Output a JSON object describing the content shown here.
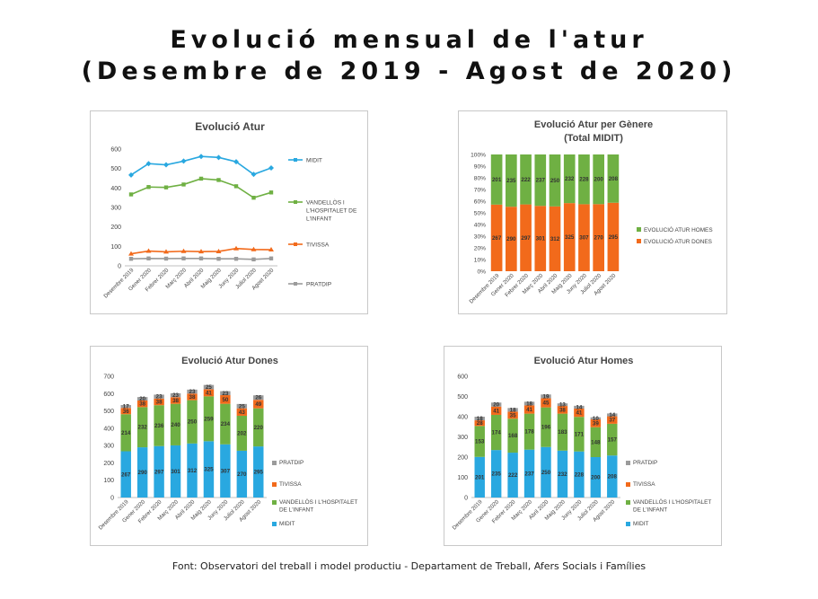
{
  "page": {
    "title_line1": "Evolució mensual de l'atur",
    "title_line2": "(Desembre de 2019 - Agost de 2020)",
    "footer": "Font: Observatori del treball i model productiu - Departament de Treball, Afers Socials i Famílies"
  },
  "colors": {
    "midit": "#29a8e0",
    "vandellos": "#6fb043",
    "tivissa": "#f26a1b",
    "pratdip": "#9b9b9b",
    "homes": "#6fb043",
    "dones": "#f26a1b",
    "grid": "#d9d9d9"
  },
  "chart_data": [
    {
      "type": "line",
      "title": "Evolució Atur",
      "categories": [
        "Desembre 2019",
        "Gener 2020",
        "Febrer 2020",
        "Març 2020",
        "Abril 2020",
        "Maig 2020",
        "Juny 2020",
        "Juliol 2020",
        "Agost 2020"
      ],
      "ylim": [
        0,
        600
      ],
      "yticks": [
        0,
        100,
        200,
        300,
        400,
        500,
        600
      ],
      "grid": false,
      "legend_position": "right",
      "series": [
        {
          "name": "MIDIT",
          "values": [
            467,
            525,
            519,
            538,
            562,
            557,
            535,
            470,
            503
          ]
        },
        {
          "name": "VANDELLÒS I L'HOSPITALET DE L'INFANT",
          "values": [
            367,
            405,
            403,
            418,
            448,
            441,
            409,
            350,
            377
          ]
        },
        {
          "name": "TIVISSA",
          "values": [
            62,
            76,
            72,
            75,
            73,
            74,
            89,
            84,
            83
          ]
        },
        {
          "name": "PRATDIP",
          "values": [
            36,
            38,
            37,
            38,
            38,
            36,
            36,
            33,
            38
          ]
        }
      ]
    },
    {
      "type": "bar",
      "stacked": "percent",
      "title": "Evolució Atur per Gènere (Total MIDIT)",
      "categories": [
        "Desembre 2019",
        "Gener 2020",
        "Febrer 2020",
        "Març 2020",
        "Abril 2020",
        "Maig 2020",
        "Juny 2020",
        "Juliol 2020",
        "Agost 2020"
      ],
      "yticks": [
        "0%",
        "10%",
        "20%",
        "30%",
        "40%",
        "50%",
        "60%",
        "70%",
        "80%",
        "90%",
        "100%"
      ],
      "legend_position": "right",
      "series": [
        {
          "name": "EVOLUCIÓ ATUR DONES",
          "values": [
            267,
            290,
            297,
            301,
            312,
            325,
            307,
            270,
            295
          ]
        },
        {
          "name": "EVOLUCIÓ ATUR HOMES",
          "values": [
            201,
            235,
            222,
            237,
            250,
            232,
            228,
            200,
            208
          ]
        }
      ]
    },
    {
      "type": "bar",
      "stacked": "value",
      "title": "Evolució Atur Dones",
      "categories": [
        "Desembre 2019",
        "Gener 2020",
        "Febrer 2020",
        "Març 2020",
        "Abril 2020",
        "Maig 2020",
        "Juny 2020",
        "Juliol 2020",
        "Agost 2020"
      ],
      "ylim": [
        0,
        700
      ],
      "yticks": [
        0,
        100,
        200,
        300,
        400,
        500,
        600,
        700
      ],
      "legend_position": "right",
      "series": [
        {
          "name": "MIDIT",
          "values": [
            267,
            290,
            297,
            301,
            312,
            325,
            307,
            270,
            295
          ]
        },
        {
          "name": "VANDELLÒS I L'HOSPITALET DE L'INFANT",
          "values": [
            214,
            232,
            236,
            240,
            250,
            259,
            234,
            202,
            220
          ]
        },
        {
          "name": "TIVISSA",
          "values": [
            36,
            38,
            38,
            38,
            38,
            41,
            50,
            43,
            49
          ]
        },
        {
          "name": "PRATDIP",
          "values": [
            17,
            20,
            23,
            23,
            23,
            25,
            23,
            25,
            26
          ]
        }
      ]
    },
    {
      "type": "bar",
      "stacked": "value",
      "title": "Evolució Atur Homes",
      "categories": [
        "Desembre 2019",
        "Gener 2020",
        "Febrer 2020",
        "Març 2020",
        "Abril 2020",
        "Maig 2020",
        "Juny 2020",
        "Juliol 2020",
        "Agost 2020"
      ],
      "ylim": [
        0,
        600
      ],
      "yticks": [
        0,
        100,
        200,
        300,
        400,
        500,
        600
      ],
      "legend_position": "right",
      "series": [
        {
          "name": "MIDIT",
          "values": [
            201,
            235,
            222,
            237,
            250,
            232,
            228,
            200,
            208
          ]
        },
        {
          "name": "VANDELLÒS I L'HOSPITALET DE L'INFANT",
          "values": [
            153,
            174,
            168,
            178,
            196,
            183,
            171,
            148,
            157
          ]
        },
        {
          "name": "TIVISSA",
          "values": [
            28,
            41,
            35,
            41,
            45,
            38,
            41,
            39,
            37
          ]
        },
        {
          "name": "PRATDIP",
          "values": [
            18,
            20,
            18,
            18,
            19,
            13,
            14,
            10,
            14
          ]
        }
      ]
    }
  ]
}
